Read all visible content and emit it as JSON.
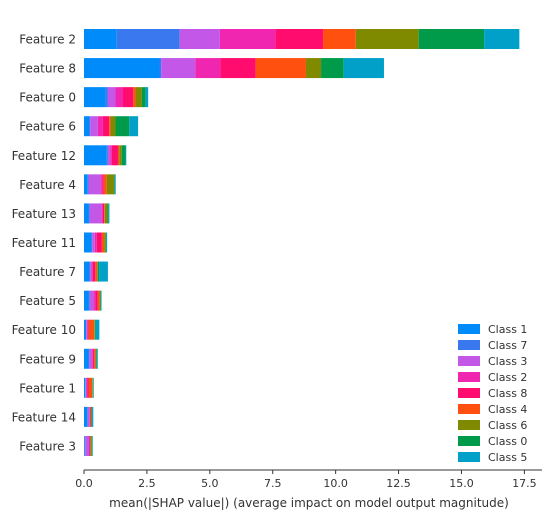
{
  "chart_data": {
    "type": "bar",
    "orientation": "horizontal",
    "stacked": true,
    "xlabel": "mean(|SHAP value|) (average impact on model output magnitude)",
    "ylabel": "",
    "xlim": [
      0,
      18.2
    ],
    "x_ticks": [
      "0.0",
      "2.5",
      "5.0",
      "7.5",
      "10.0",
      "12.5",
      "15.0",
      "17.5"
    ],
    "x_tick_values": [
      0,
      2.5,
      5,
      7.5,
      10,
      12.5,
      15,
      17.5
    ],
    "grid": false,
    "legend_position": "bottom-right",
    "categories": [
      "Feature 2",
      "Feature 8",
      "Feature 0",
      "Feature 6",
      "Feature 12",
      "Feature 4",
      "Feature 13",
      "Feature 11",
      "Feature 7",
      "Feature 5",
      "Feature 10",
      "Feature 9",
      "Feature 1",
      "Feature 14",
      "Feature 3"
    ],
    "series": [
      {
        "name": "Class 1",
        "color": "#008bfb",
        "values": [
          1.3,
          3.0,
          0.85,
          0.2,
          0.9,
          0.15,
          0.18,
          0.28,
          0.2,
          0.18,
          0.06,
          0.18,
          0.05,
          0.12,
          0.03
        ]
      },
      {
        "name": "Class 7",
        "color": "#3a78f0",
        "values": [
          2.5,
          0.07,
          0.1,
          0.05,
          0.05,
          0.03,
          0.05,
          0.05,
          0.05,
          0.05,
          0.03,
          0.03,
          0.02,
          0.03,
          0.02
        ]
      },
      {
        "name": "Class 3",
        "color": "#c358e8",
        "values": [
          1.6,
          1.35,
          0.3,
          0.3,
          0.1,
          0.5,
          0.47,
          0.1,
          0.05,
          0.17,
          0.03,
          0.12,
          0.03,
          0.06,
          0.15
        ]
      },
      {
        "name": "Class 2",
        "color": "#f026b1",
        "values": [
          2.2,
          1.0,
          0.3,
          0.2,
          0.05,
          0.05,
          0.05,
          0.08,
          0.05,
          0.05,
          0.03,
          0.03,
          0.03,
          0.02,
          0.02
        ]
      },
      {
        "name": "Class 8",
        "color": "#ff0c6e",
        "values": [
          1.9,
          1.4,
          0.4,
          0.25,
          0.25,
          0.05,
          0.05,
          0.2,
          0.1,
          0.1,
          0.04,
          0.05,
          0.05,
          0.03,
          0.02
        ]
      },
      {
        "name": "Class 4",
        "color": "#ff5010",
        "values": [
          1.3,
          2.0,
          0.1,
          0.05,
          0.05,
          0.12,
          0.03,
          0.1,
          0.07,
          0.07,
          0.22,
          0.05,
          0.15,
          0.02,
          0.02
        ]
      },
      {
        "name": "Class 6",
        "color": "#7f8a00",
        "values": [
          2.5,
          0.6,
          0.25,
          0.2,
          0.1,
          0.3,
          0.1,
          0.05,
          0.03,
          0.03,
          0.02,
          0.03,
          0.02,
          0.02,
          0.05
        ]
      },
      {
        "name": "Class 0",
        "color": "#009b4a",
        "values": [
          2.6,
          0.9,
          0.15,
          0.55,
          0.15,
          0.03,
          0.05,
          0.03,
          0.05,
          0.03,
          0.03,
          0.03,
          0.02,
          0.02,
          0.02
        ]
      },
      {
        "name": "Class 5",
        "color": "#00a0c8",
        "values": [
          1.4,
          1.6,
          0.1,
          0.35,
          0.03,
          0.03,
          0.03,
          0.03,
          0.35,
          0.02,
          0.15,
          0.03,
          0.02,
          0.05,
          0.02
        ]
      }
    ]
  }
}
